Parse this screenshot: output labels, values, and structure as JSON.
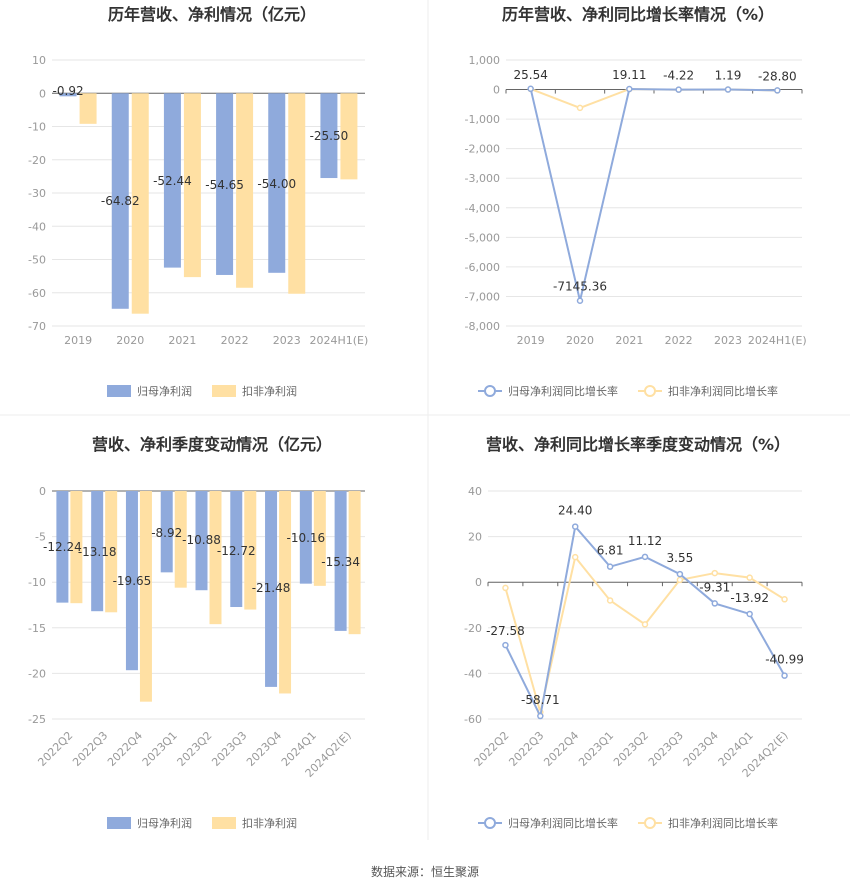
{
  "colors": {
    "blue": "#8faadc",
    "yellow": "#ffe0a3",
    "grid": "#e6e6e6",
    "axis": "#999999",
    "title": "#333333",
    "label": "#333333",
    "tick": "#999999",
    "divider": "#eeeeee"
  },
  "source": "数据来源：恒生聚源",
  "chart_data": [
    {
      "id": "c1",
      "type": "bar",
      "title": "历年营收、净利情况（亿元）",
      "categories": [
        "2019",
        "2020",
        "2021",
        "2022",
        "2023",
        "2024H1(E)"
      ],
      "series": [
        {
          "name": "归母净利润",
          "color": "#8faadc",
          "values": [
            -0.92,
            -64.82,
            -52.44,
            -54.65,
            -54.0,
            -25.5
          ],
          "labels": [
            "-0.92",
            "-64.82",
            "-52.44",
            "-54.65",
            "-54.00",
            "-25.50"
          ]
        },
        {
          "name": "扣非净利润",
          "color": "#ffe0a3",
          "values": [
            -9.2,
            -66.3,
            -55.3,
            -58.5,
            -60.3,
            -25.9
          ],
          "labels": []
        }
      ],
      "ylim": [
        -70,
        10
      ],
      "yticks": [
        "10",
        "0",
        "-10",
        "-20",
        "-30",
        "-40",
        "-50",
        "-60",
        "-70"
      ],
      "grid": true,
      "legend": "bottom"
    },
    {
      "id": "c2",
      "type": "line",
      "title": "历年营收、净利同比增长率情况（%）",
      "categories": [
        "2019",
        "2020",
        "2021",
        "2022",
        "2023",
        "2024H1(E)"
      ],
      "series": [
        {
          "name": "归母净利润同比增长率",
          "color": "#8faadc",
          "values": [
            25.54,
            -7145.36,
            19.11,
            -4.22,
            1.19,
            -28.8
          ],
          "labels": [
            "25.54",
            "-7145.36",
            "19.11",
            "-4.22",
            "1.19",
            "-28.80"
          ]
        },
        {
          "name": "扣非净利润同比增长率",
          "color": "#ffe0a3",
          "values": [
            20,
            -620,
            15,
            -5,
            2,
            -30
          ],
          "labels": []
        }
      ],
      "ylim": [
        -8000,
        1000
      ],
      "yticks": [
        "1,000",
        "0",
        "-1,000",
        "-2,000",
        "-3,000",
        "-4,000",
        "-5,000",
        "-6,000",
        "-7,000",
        "-8,000"
      ],
      "grid": true,
      "legend": "bottom"
    },
    {
      "id": "c3",
      "type": "bar",
      "title": "营收、净利季度变动情况（亿元）",
      "categories": [
        "2022Q2",
        "2022Q3",
        "2022Q4",
        "2023Q1",
        "2023Q2",
        "2023Q3",
        "2023Q4",
        "2024Q1",
        "2024Q2(E)"
      ],
      "series": [
        {
          "name": "归母净利润",
          "color": "#8faadc",
          "values": [
            -12.24,
            -13.18,
            -19.65,
            -8.92,
            -10.88,
            -12.72,
            -21.48,
            -10.16,
            -15.34
          ],
          "labels": [
            "-12.24",
            "-13.18",
            "-19.65",
            "-8.92",
            "-10.88",
            "-12.72",
            "-21.48",
            "-10.16",
            "-15.34"
          ]
        },
        {
          "name": "扣非净利润",
          "color": "#ffe0a3",
          "values": [
            -12.3,
            -13.3,
            -23.1,
            -10.6,
            -14.6,
            -13.0,
            -22.2,
            -10.4,
            -15.7
          ],
          "labels": []
        }
      ],
      "ylim": [
        -25,
        0
      ],
      "yticks": [
        "0",
        "-5",
        "-10",
        "-15",
        "-20",
        "-25"
      ],
      "grid": true,
      "legend": "bottom"
    },
    {
      "id": "c4",
      "type": "line",
      "title": "营收、净利同比增长率季度变动情况（%）",
      "categories": [
        "2022Q2",
        "2022Q3",
        "2022Q4",
        "2023Q1",
        "2023Q2",
        "2023Q3",
        "2023Q4",
        "2024Q1",
        "2024Q2(E)"
      ],
      "series": [
        {
          "name": "归母净利润同比增长率",
          "color": "#8faadc",
          "values": [
            -27.58,
            -58.71,
            24.4,
            6.81,
            11.12,
            3.55,
            -9.31,
            -13.92,
            -40.99
          ],
          "labels": [
            "-27.58",
            "-58.71",
            "24.40",
            "6.81",
            "11.12",
            "3.55",
            "-9.31",
            "-13.92",
            "-40.99"
          ]
        },
        {
          "name": "扣非净利润同比增长率",
          "color": "#ffe0a3",
          "values": [
            -2.5,
            -57.0,
            11.0,
            -8.0,
            -18.5,
            1.0,
            4.0,
            2.0,
            -7.5
          ],
          "labels": []
        }
      ],
      "ylim": [
        -60,
        40
      ],
      "yticks": [
        "40",
        "20",
        "0",
        "-20",
        "-40",
        "-60"
      ],
      "grid": true,
      "legend": "bottom"
    }
  ]
}
